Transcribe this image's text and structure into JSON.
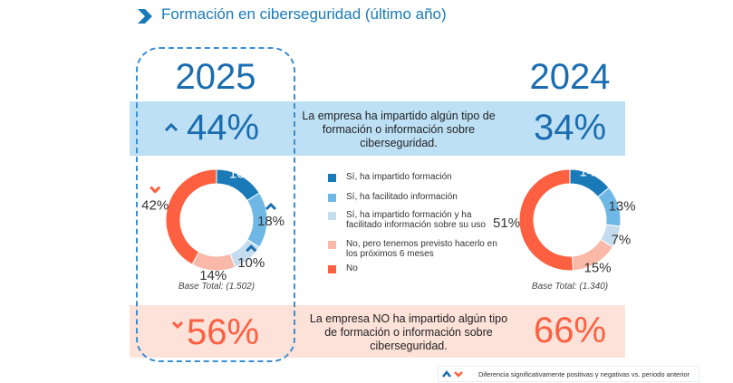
{
  "title": "Formación en ciberseguridad (último año)",
  "colors": {
    "si_formacion": "#1a7ab8",
    "si_informacion": "#6fb8e6",
    "si_ambos": "#c4dcee",
    "no_previsto": "#f9b8a8",
    "no": "#fd6040",
    "positive": "#1a6db0",
    "negative": "#fd6040"
  },
  "header": {
    "year_2025": "2025",
    "year_2024": "2024"
  },
  "impartido": {
    "label": "La empresa ha impartido algún tipo de formación o información sobre ciberseguridad.",
    "v2025": "44%",
    "v2024": "34%"
  },
  "no_impartido": {
    "label": "La empresa NO ha impartido algún tipo de formación o información sobre ciberseguridad.",
    "v2025": "56%",
    "v2024": "66%"
  },
  "legend": [
    "Sí, ha impartido formación",
    "Sí, ha facilitado información",
    "Sí, ha impartido formación y ha facilitado información sobre su uso",
    "No, pero tenemos previsto hacerlo en los próximos 6 meses",
    "No"
  ],
  "chart_data": [
    {
      "type": "pie",
      "title": "2025",
      "categories": [
        "Sí, ha impartido formación",
        "Sí, ha facilitado información",
        "Sí, ha impartido formación y ha facilitado información sobre su uso",
        "No, pero tenemos previsto hacerlo en los próximos 6 meses",
        "No"
      ],
      "values": [
        16,
        18,
        10,
        14,
        42
      ],
      "labels": [
        "16%",
        "18%",
        "10%",
        "14%",
        "42%"
      ],
      "significance": [
        null,
        "up",
        "up",
        null,
        "down"
      ],
      "base": "Base Total: (1.502)"
    },
    {
      "type": "pie",
      "title": "2024",
      "categories": [
        "Sí, ha impartido formación",
        "Sí, ha facilitado información",
        "Sí, ha impartido formación y ha facilitado información sobre su uso",
        "No, pero tenemos previsto hacerlo en los próximos 6 meses",
        "No"
      ],
      "values": [
        14,
        13,
        7,
        15,
        51
      ],
      "labels": [
        "14%",
        "13%",
        "7%",
        "15%",
        "51%"
      ],
      "base": "Base Total: (1.340)"
    }
  ],
  "footnote": "Diferencia significativamente positivas y negativas vs. periodo anterior"
}
